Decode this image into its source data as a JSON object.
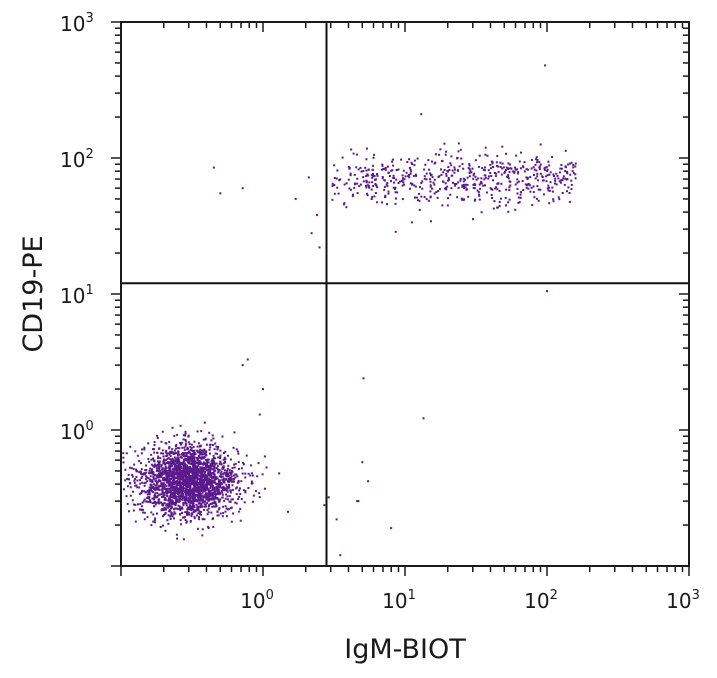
{
  "chart_data": {
    "type": "scatter",
    "title": "",
    "xlabel": "IgM-BIOT",
    "ylabel": "CD19-PE",
    "xscale": "log",
    "yscale": "log",
    "xlim": [
      0.1,
      1000
    ],
    "ylim": [
      0.1,
      1000
    ],
    "grid": false,
    "x_tick_labels": [
      {
        "base": "10",
        "exp": "0",
        "value": 1
      },
      {
        "base": "10",
        "exp": "1",
        "value": 10
      },
      {
        "base": "10",
        "exp": "2",
        "value": 100
      },
      {
        "base": "10",
        "exp": "3",
        "value": 1000
      }
    ],
    "y_tick_labels": [
      {
        "base": "10",
        "exp": "0",
        "value": 1
      },
      {
        "base": "10",
        "exp": "1",
        "value": 10
      },
      {
        "base": "10",
        "exp": "2",
        "value": 100
      },
      {
        "base": "10",
        "exp": "3",
        "value": 1000
      }
    ],
    "quadrant_gates": {
      "x": 2.8,
      "y": 12
    },
    "point_color": "#5b1a8c",
    "populations": [
      {
        "description": "CD19-negative IgM-negative cluster (lower-left)",
        "x_median": 0.3,
        "y_median": 0.42,
        "x_spread_decades": 0.17,
        "y_spread_decades": 0.13,
        "approx_count": 2400
      },
      {
        "description": "CD19-positive IgM-positive cluster (upper-right)",
        "x_range": [
          3,
          160
        ],
        "y_median": 70,
        "y_spread_decades": 0.1,
        "approx_count": 600
      }
    ],
    "sparse_points": [
      {
        "x": 97,
        "y": 480
      },
      {
        "x": 13,
        "y": 210
      },
      {
        "x": 0.45,
        "y": 85
      },
      {
        "x": 0.5,
        "y": 55
      },
      {
        "x": 0.72,
        "y": 60
      },
      {
        "x": 2.1,
        "y": 72
      },
      {
        "x": 1.7,
        "y": 50
      },
      {
        "x": 2.4,
        "y": 38
      },
      {
        "x": 2.2,
        "y": 28
      },
      {
        "x": 2.5,
        "y": 22
      },
      {
        "x": 2.8,
        "y": 17
      },
      {
        "x": 100,
        "y": 10.5
      },
      {
        "x": 0.78,
        "y": 3.3
      },
      {
        "x": 0.72,
        "y": 3.0
      },
      {
        "x": 1.0,
        "y": 2.0
      },
      {
        "x": 5.1,
        "y": 2.4
      },
      {
        "x": 13.5,
        "y": 1.22
      },
      {
        "x": 0.95,
        "y": 1.3
      },
      {
        "x": 2.9,
        "y": 0.32
      },
      {
        "x": 2.7,
        "y": 0.28
      },
      {
        "x": 3.3,
        "y": 0.22
      },
      {
        "x": 5.0,
        "y": 0.58
      },
      {
        "x": 5.5,
        "y": 0.42
      },
      {
        "x": 4.7,
        "y": 0.3
      },
      {
        "x": 4.6,
        "y": 0.3
      },
      {
        "x": 8,
        "y": 0.19
      },
      {
        "x": 3.5,
        "y": 0.12
      },
      {
        "x": 1.3,
        "y": 0.48
      },
      {
        "x": 1.5,
        "y": 0.25
      }
    ]
  }
}
